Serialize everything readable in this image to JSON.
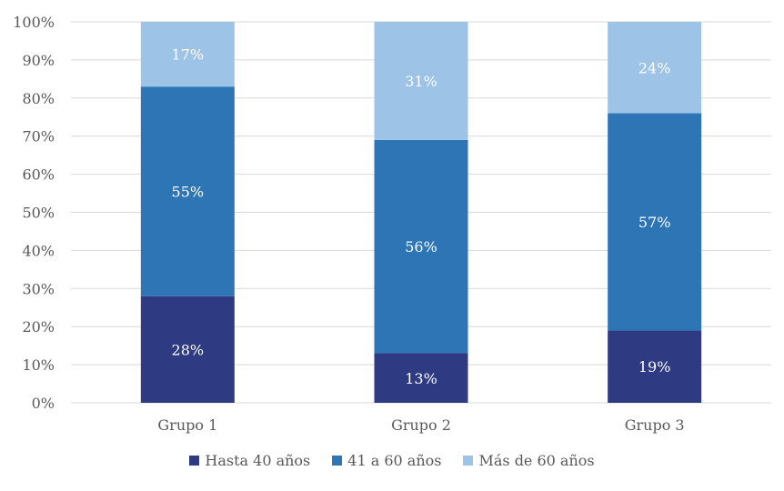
{
  "chart_data": {
    "type": "bar",
    "stacked": true,
    "percent": true,
    "categories": [
      "Grupo 1",
      "Grupo 2",
      "Grupo 3"
    ],
    "series": [
      {
        "name": "Hasta 40 años",
        "values": [
          28,
          13,
          19
        ],
        "labels": [
          "28%",
          "13%",
          "19%"
        ],
        "color": "#2e3b82"
      },
      {
        "name": "41 a 60 años",
        "values": [
          55,
          56,
          57
        ],
        "labels": [
          "55%",
          "56%",
          "57%"
        ],
        "color": "#2e75b6"
      },
      {
        "name": "Más de 60 años",
        "values": [
          17,
          31,
          24
        ],
        "labels": [
          "17%",
          "31%",
          "24%"
        ],
        "color": "#9dc3e6"
      }
    ],
    "ylim": [
      0,
      100
    ],
    "yticks": [
      "0%",
      "10%",
      "20%",
      "30%",
      "40%",
      "50%",
      "60%",
      "70%",
      "80%",
      "90%",
      "100%"
    ],
    "grid": true,
    "legend_position": "bottom"
  }
}
